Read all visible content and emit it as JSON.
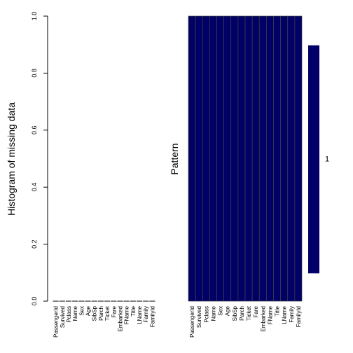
{
  "chart_data": [
    {
      "type": "bar",
      "ylabel": "Histogram of missing data",
      "ylim": [
        0,
        1
      ],
      "yticks": [
        "0.0",
        "0.2",
        "0.4",
        "0.6",
        "0.8",
        "1.0"
      ],
      "categories": [
        "PassengerId",
        "Survived",
        "Pclass",
        "Name",
        "Sex",
        "Age",
        "SibSp",
        "Parch",
        "Ticket",
        "Fare",
        "Embarked",
        "FName",
        "Title",
        "LName",
        "Family",
        "FamilyId"
      ],
      "values": [
        0,
        0,
        0,
        0,
        0,
        0,
        0,
        0,
        0,
        0,
        0,
        0,
        0,
        0,
        0,
        0
      ],
      "color": "#000000"
    },
    {
      "type": "heatmap",
      "ylabel": "Pattern",
      "categories": [
        "PassengerId",
        "Survived",
        "Pclass",
        "Name",
        "Sex",
        "Age",
        "SibSp",
        "Parch",
        "Ticket",
        "Fare",
        "Embarked",
        "FName",
        "Title",
        "LName",
        "Family",
        "FamilyId"
      ],
      "patterns": [
        {
          "label": "1",
          "proportion": 1.0,
          "missing": [
            false,
            false,
            false,
            false,
            false,
            false,
            false,
            false,
            false,
            false,
            false,
            false,
            false,
            false,
            false,
            false
          ]
        }
      ],
      "present_color": "#000066",
      "grid": true
    }
  ]
}
